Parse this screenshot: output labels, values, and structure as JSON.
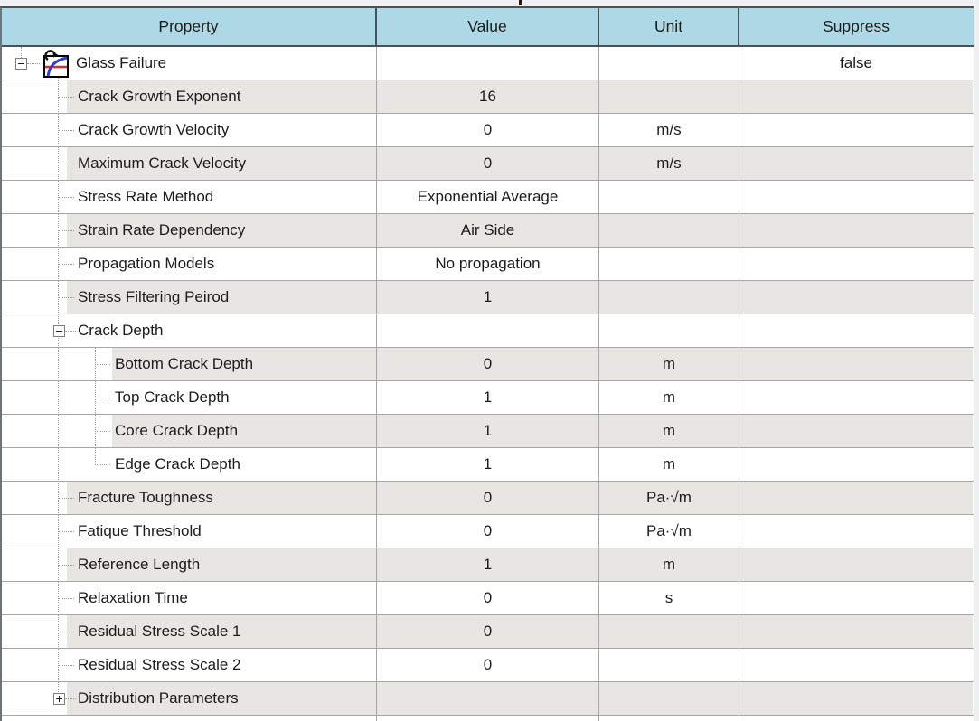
{
  "table": {
    "headers": [
      "Property",
      "Value",
      "Unit",
      "Suppress"
    ],
    "rows": [
      {
        "property": "Glass Failure",
        "value": "",
        "unit": "",
        "suppress": "false",
        "level": 0,
        "expander": "minus",
        "icon": "material-curve-icon",
        "shaded": false
      },
      {
        "property": "Crack Growth Exponent",
        "value": "16",
        "unit": "",
        "suppress": "",
        "level": 1,
        "expander": "",
        "icon": "",
        "shaded": true
      },
      {
        "property": "Crack Growth Velocity",
        "value": "0",
        "unit": "m/s",
        "suppress": "",
        "level": 1,
        "expander": "",
        "icon": "",
        "shaded": false
      },
      {
        "property": "Maximum Crack Velocity",
        "value": "0",
        "unit": "m/s",
        "suppress": "",
        "level": 1,
        "expander": "",
        "icon": "",
        "shaded": true
      },
      {
        "property": "Stress Rate Method",
        "value": "Exponential Average",
        "unit": "",
        "suppress": "",
        "level": 1,
        "expander": "",
        "icon": "",
        "shaded": false
      },
      {
        "property": "Strain Rate Dependency",
        "value": "Air Side",
        "unit": "",
        "suppress": "",
        "level": 1,
        "expander": "",
        "icon": "",
        "shaded": true
      },
      {
        "property": "Propagation Models",
        "value": "No propagation",
        "unit": "",
        "suppress": "",
        "level": 1,
        "expander": "",
        "icon": "",
        "shaded": false
      },
      {
        "property": "Stress Filtering Peirod",
        "value": "1",
        "unit": "",
        "suppress": "",
        "level": 1,
        "expander": "",
        "icon": "",
        "shaded": true
      },
      {
        "property": "Crack Depth",
        "value": "",
        "unit": "",
        "suppress": "",
        "level": 1,
        "expander": "minus",
        "icon": "",
        "shaded": false
      },
      {
        "property": "Bottom Crack Depth",
        "value": "0",
        "unit": "m",
        "suppress": "",
        "level": 2,
        "expander": "",
        "icon": "",
        "shaded": true
      },
      {
        "property": "Top Crack Depth",
        "value": "1",
        "unit": "m",
        "suppress": "",
        "level": 2,
        "expander": "",
        "icon": "",
        "shaded": false
      },
      {
        "property": "Core Crack Depth",
        "value": "1",
        "unit": "m",
        "suppress": "",
        "level": 2,
        "expander": "",
        "icon": "",
        "shaded": true
      },
      {
        "property": "Edge Crack Depth",
        "value": "1",
        "unit": "m",
        "suppress": "",
        "level": 2,
        "expander": "",
        "icon": "",
        "shaded": false,
        "lastChild": true
      },
      {
        "property": "Fracture Toughness",
        "value": "0",
        "unit": "Pa·√m",
        "suppress": "",
        "level": 1,
        "expander": "",
        "icon": "",
        "shaded": true
      },
      {
        "property": "Fatique Threshold",
        "value": "0",
        "unit": "Pa·√m",
        "suppress": "",
        "level": 1,
        "expander": "",
        "icon": "",
        "shaded": false
      },
      {
        "property": "Reference Length",
        "value": "1",
        "unit": "m",
        "suppress": "",
        "level": 1,
        "expander": "",
        "icon": "",
        "shaded": true
      },
      {
        "property": "Relaxation Time",
        "value": "0",
        "unit": "s",
        "suppress": "",
        "level": 1,
        "expander": "",
        "icon": "",
        "shaded": false
      },
      {
        "property": "Residual Stress Scale 1",
        "value": "0",
        "unit": "",
        "suppress": "",
        "level": 1,
        "expander": "",
        "icon": "",
        "shaded": true
      },
      {
        "property": "Residual Stress Scale 2",
        "value": "0",
        "unit": "",
        "suppress": "",
        "level": 1,
        "expander": "",
        "icon": "",
        "shaded": false
      },
      {
        "property": "Distribution Parameters",
        "value": "",
        "unit": "",
        "suppress": "",
        "level": 1,
        "expander": "plus",
        "icon": "",
        "shaded": true,
        "lastSibling": true
      }
    ]
  },
  "colors": {
    "header_bg": "#add9e6",
    "header_border": "#44545c",
    "row_alt_bg": "#e8e6e2",
    "grid_line": "#a6a6a6",
    "tree_line": "#9b9b9b",
    "icon_curve_blue": "#2a3fd4",
    "icon_line_red": "#e02b2b"
  }
}
